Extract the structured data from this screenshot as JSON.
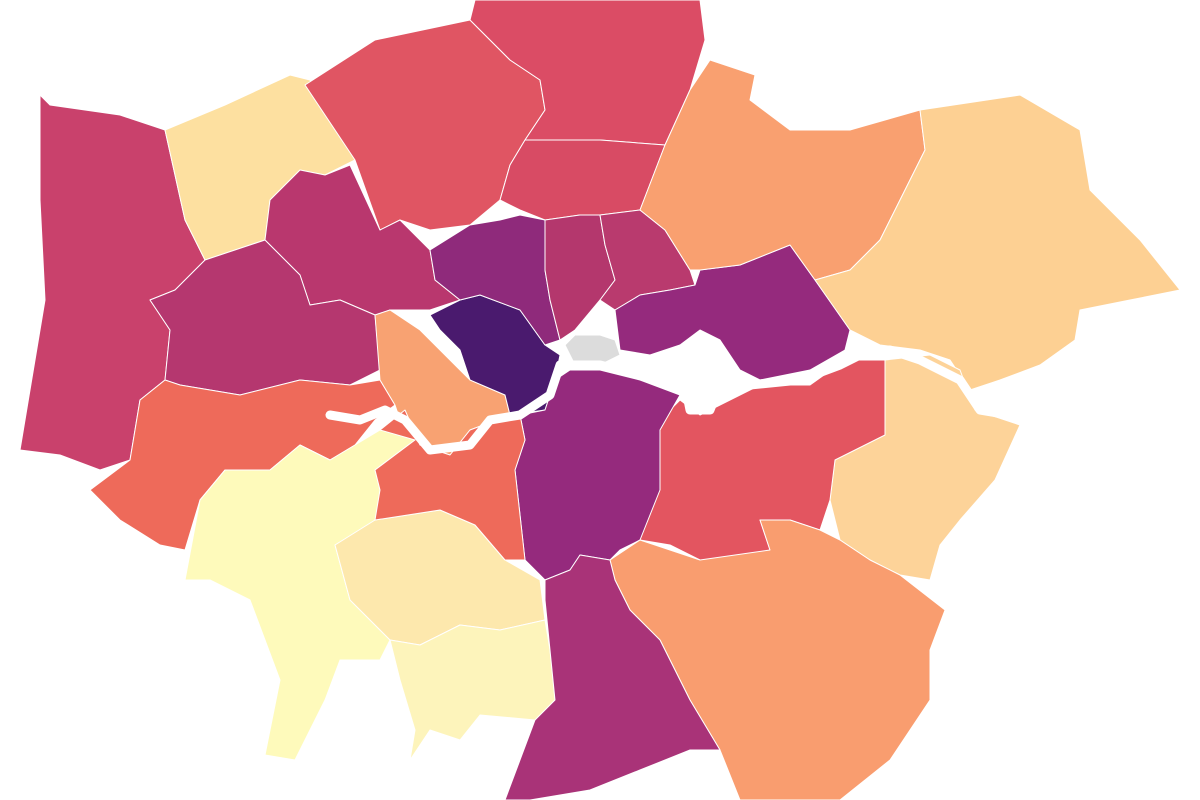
{
  "map": {
    "regions": [
      {
        "color": "#c9416c"
      },
      {
        "color": "#fde0a0"
      },
      {
        "color": "#e05563"
      },
      {
        "color": "#db4c65"
      },
      {
        "color": "#d84b64"
      },
      {
        "color": "#b9376e"
      },
      {
        "color": "#b5376f"
      },
      {
        "color": "#ee6a5a"
      },
      {
        "color": "#fefabb"
      },
      {
        "color": "#fde8ad"
      },
      {
        "color": "#fdf4bb"
      },
      {
        "color": "#f8a272"
      },
      {
        "color": "#4a1a6e"
      },
      {
        "color": "#8f2a7b"
      },
      {
        "color": "#b4376d"
      },
      {
        "color": "#b93a6e"
      },
      {
        "color": "#dcdcdc"
      },
      {
        "color": "#952a7d"
      },
      {
        "color": "#f9a070"
      },
      {
        "color": "#fdd093"
      },
      {
        "color": "#fdd399"
      },
      {
        "color": "#e35560"
      },
      {
        "color": "#952a7d"
      },
      {
        "color": "#f99d6f"
      },
      {
        "color": "#a93378"
      },
      {
        "color": "#ee6a5a"
      }
    ]
  }
}
